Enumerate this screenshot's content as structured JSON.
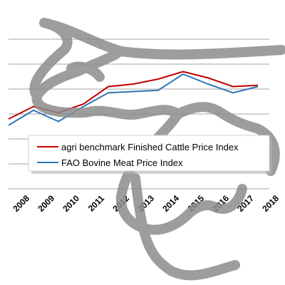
{
  "chart_data": {
    "type": "line",
    "categories": [
      "2008",
      "2009",
      "2010",
      "2011",
      "2012",
      "2013",
      "2014",
      "2015",
      "2016",
      "2017",
      "2018"
    ],
    "series": [
      {
        "name": "agri benchmark Finished Cattle Price Index",
        "color": "#c00000",
        "values": [
          2.8,
          3.3,
          3.05,
          3.4,
          4.1,
          4.2,
          4.4,
          4.7,
          4.45,
          4.1,
          4.15
        ]
      },
      {
        "name": "FAO Bovine Meat Price Index",
        "color": "#2e75b6",
        "values": [
          2.55,
          3.15,
          2.7,
          3.3,
          3.85,
          3.9,
          3.95,
          4.6,
          4.2,
          3.85,
          4.1
        ]
      }
    ],
    "ylim": [
      0,
      6
    ],
    "yticks": [
      0,
      1,
      2,
      3,
      4,
      5,
      6
    ],
    "grid": true,
    "ytick_labels": false
  }
}
